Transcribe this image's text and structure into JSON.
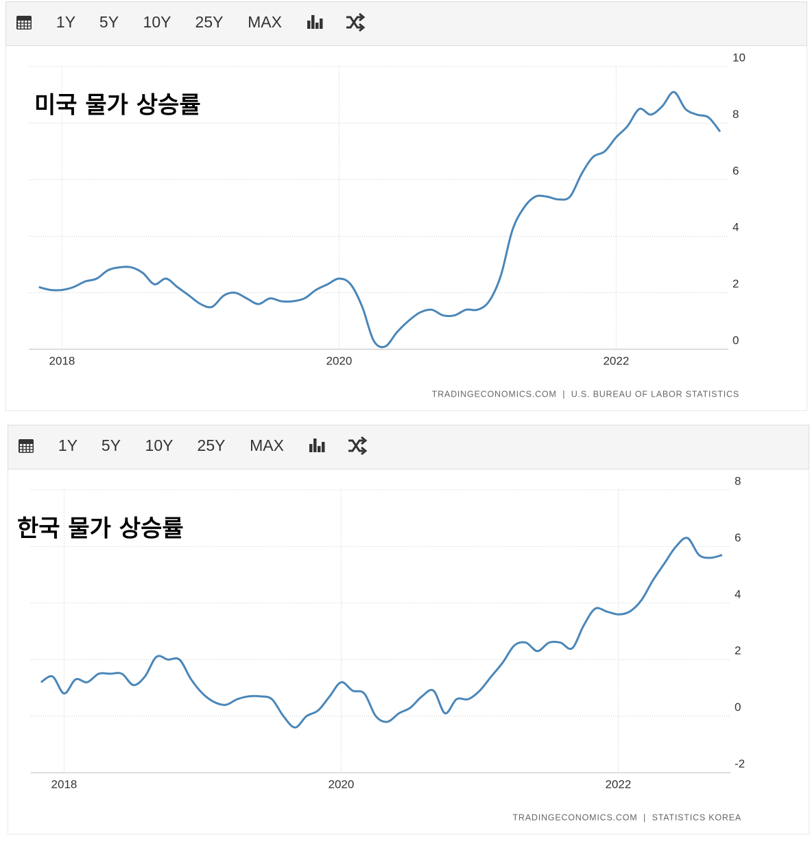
{
  "toolbar": [
    "1Y",
    "5Y",
    "10Y",
    "25Y",
    "MAX"
  ],
  "chart_data": [
    {
      "type": "line",
      "title": "미국 물가 상승률",
      "source": "TRADINGECONOMICS.COM  |  U.S. BUREAU OF LABOR STATISTICS",
      "x": [
        2017.833,
        2017.917,
        2018.0,
        2018.083,
        2018.167,
        2018.25,
        2018.333,
        2018.417,
        2018.5,
        2018.583,
        2018.667,
        2018.75,
        2018.833,
        2018.917,
        2019.0,
        2019.083,
        2019.167,
        2019.25,
        2019.333,
        2019.417,
        2019.5,
        2019.583,
        2019.667,
        2019.75,
        2019.833,
        2019.917,
        2020.0,
        2020.083,
        2020.167,
        2020.25,
        2020.333,
        2020.417,
        2020.5,
        2020.583,
        2020.667,
        2020.75,
        2020.833,
        2020.917,
        2021.0,
        2021.083,
        2021.167,
        2021.25,
        2021.333,
        2021.417,
        2021.5,
        2021.583,
        2021.667,
        2021.75,
        2021.833,
        2021.917,
        2022.0,
        2022.083,
        2022.167,
        2022.25,
        2022.333,
        2022.417,
        2022.5,
        2022.583,
        2022.667,
        2022.75
      ],
      "series": [
        {
          "color": "#4a86b8",
          "values": [
            2.2,
            2.1,
            2.1,
            2.2,
            2.4,
            2.5,
            2.8,
            2.9,
            2.9,
            2.7,
            2.3,
            2.5,
            2.2,
            1.9,
            1.6,
            1.5,
            1.9,
            2.0,
            1.8,
            1.6,
            1.8,
            1.7,
            1.7,
            1.8,
            2.1,
            2.3,
            2.5,
            2.3,
            1.5,
            0.3,
            0.1,
            0.6,
            1.0,
            1.3,
            1.4,
            1.2,
            1.2,
            1.4,
            1.4,
            1.7,
            2.6,
            4.2,
            5.0,
            5.4,
            5.4,
            5.3,
            5.4,
            6.2,
            6.8,
            7.0,
            7.5,
            7.9,
            8.5,
            8.3,
            8.6,
            9.1,
            8.5,
            8.3,
            8.2,
            7.7
          ]
        }
      ],
      "xlim": [
        2017.76,
        2022.81
      ],
      "xticks": [
        2018,
        2020,
        2022
      ],
      "ylim": [
        0,
        10
      ],
      "yticks": [
        0,
        2,
        4,
        6,
        8,
        10
      ],
      "grid": true
    },
    {
      "type": "line",
      "title": "한국 물가 상승률",
      "source": "TRADINGECONOMICS.COM  |  STATISTICS KOREA",
      "x": [
        2017.833,
        2017.917,
        2018.0,
        2018.083,
        2018.167,
        2018.25,
        2018.333,
        2018.417,
        2018.5,
        2018.583,
        2018.667,
        2018.75,
        2018.833,
        2018.917,
        2019.0,
        2019.083,
        2019.167,
        2019.25,
        2019.333,
        2019.417,
        2019.5,
        2019.583,
        2019.667,
        2019.75,
        2019.833,
        2019.917,
        2020.0,
        2020.083,
        2020.167,
        2020.25,
        2020.333,
        2020.417,
        2020.5,
        2020.583,
        2020.667,
        2020.75,
        2020.833,
        2020.917,
        2021.0,
        2021.083,
        2021.167,
        2021.25,
        2021.333,
        2021.417,
        2021.5,
        2021.583,
        2021.667,
        2021.75,
        2021.833,
        2021.917,
        2022.0,
        2022.083,
        2022.167,
        2022.25,
        2022.333,
        2022.417,
        2022.5,
        2022.583,
        2022.667,
        2022.75
      ],
      "series": [
        {
          "color": "#4a86b8",
          "values": [
            1.2,
            1.4,
            0.8,
            1.3,
            1.2,
            1.5,
            1.5,
            1.5,
            1.1,
            1.4,
            2.1,
            2.0,
            2.0,
            1.3,
            0.8,
            0.5,
            0.4,
            0.6,
            0.7,
            0.7,
            0.6,
            0.0,
            -0.4,
            0.0,
            0.2,
            0.7,
            1.2,
            0.9,
            0.8,
            0.0,
            -0.2,
            0.1,
            0.3,
            0.7,
            0.9,
            0.1,
            0.6,
            0.6,
            0.9,
            1.4,
            1.9,
            2.5,
            2.6,
            2.3,
            2.6,
            2.6,
            2.4,
            3.2,
            3.8,
            3.7,
            3.6,
            3.7,
            4.1,
            4.8,
            5.4,
            6.0,
            6.3,
            5.7,
            5.6,
            5.7
          ]
        }
      ],
      "xlim": [
        2017.76,
        2022.81
      ],
      "xticks": [
        2018,
        2020,
        2022
      ],
      "ylim": [
        -2,
        8
      ],
      "yticks": [
        -2,
        0,
        2,
        4,
        6,
        8
      ],
      "grid": true
    }
  ]
}
